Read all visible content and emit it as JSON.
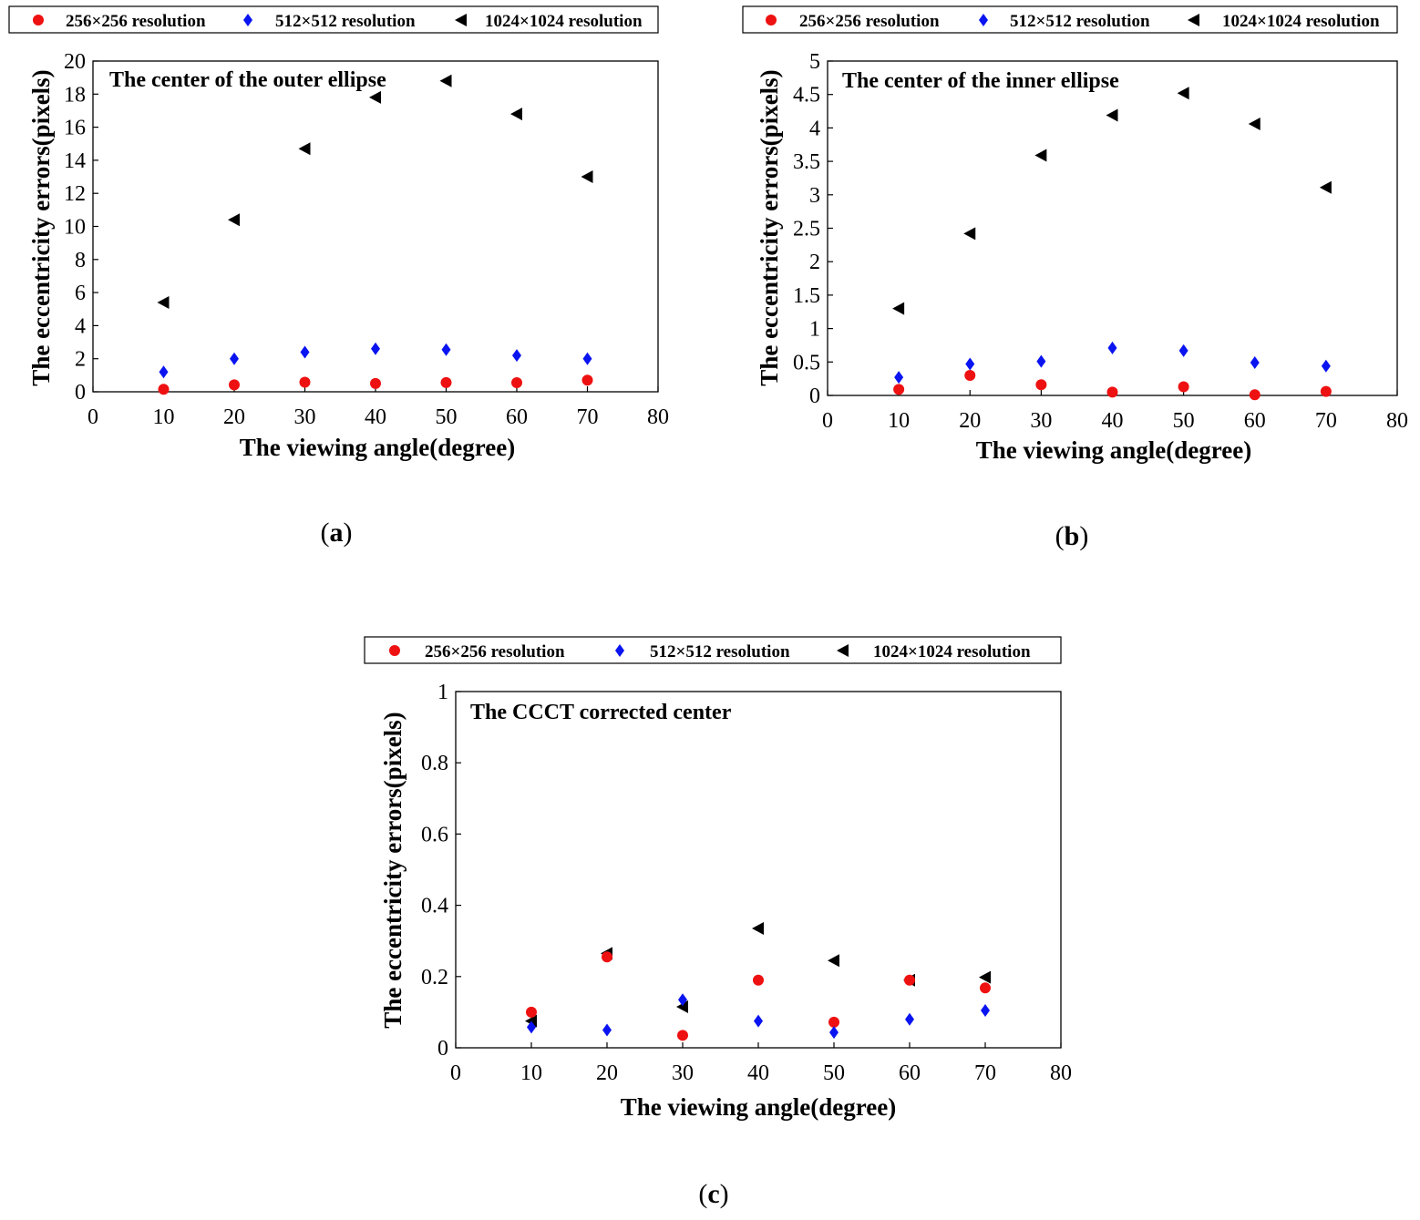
{
  "colors": {
    "s256": "#ee1111",
    "s512": "#0a14f0",
    "s1024": "#000000"
  },
  "chart_data": [
    {
      "type": "scatter",
      "panel_label": "a",
      "title": "The center of the outer ellipse",
      "xlabel": "The viewing angle(degree)",
      "ylabel": "The eccentricity errors(pixels)",
      "xlim": [
        0,
        80
      ],
      "ylim": [
        0,
        20
      ],
      "xticks": [
        0,
        10,
        20,
        30,
        40,
        50,
        60,
        70,
        80
      ],
      "yticks": [
        0,
        2,
        4,
        6,
        8,
        10,
        12,
        14,
        16,
        18,
        20
      ],
      "x": [
        10,
        20,
        30,
        40,
        50,
        60,
        70
      ],
      "series": [
        {
          "name": "256×256 resolution",
          "marker": "circle",
          "values": [
            0.15,
            0.42,
            0.58,
            0.5,
            0.56,
            0.55,
            0.7
          ]
        },
        {
          "name": "512×512 resolution",
          "marker": "diamond",
          "values": [
            1.2,
            2.0,
            2.4,
            2.6,
            2.55,
            2.2,
            2.0
          ]
        },
        {
          "name": "1024×1024 resolution",
          "marker": "triangle-left",
          "values": [
            5.4,
            10.4,
            14.7,
            17.8,
            18.8,
            16.8,
            13.0
          ]
        }
      ]
    },
    {
      "type": "scatter",
      "panel_label": "b",
      "title": "The center of the inner ellipse",
      "xlabel": "The viewing angle(degree)",
      "ylabel": "The eccentricity errors(pixels)",
      "xlim": [
        0,
        80
      ],
      "ylim": [
        0,
        5
      ],
      "xticks": [
        0,
        10,
        20,
        30,
        40,
        50,
        60,
        70,
        80
      ],
      "yticks": [
        0,
        0.5,
        1,
        1.5,
        2,
        2.5,
        3,
        3.5,
        4,
        4.5,
        5
      ],
      "x": [
        10,
        20,
        30,
        40,
        50,
        60,
        70
      ],
      "series": [
        {
          "name": "256×256 resolution",
          "marker": "circle",
          "values": [
            0.09,
            0.3,
            0.16,
            0.05,
            0.13,
            0.01,
            0.06
          ]
        },
        {
          "name": "512×512 resolution",
          "marker": "diamond",
          "values": [
            0.27,
            0.47,
            0.51,
            0.71,
            0.67,
            0.49,
            0.44
          ]
        },
        {
          "name": "1024×1024 resolution",
          "marker": "triangle-left",
          "values": [
            1.3,
            2.42,
            3.59,
            4.19,
            4.52,
            4.06,
            3.11
          ]
        }
      ]
    },
    {
      "type": "scatter",
      "panel_label": "c",
      "title": "The CCCT corrected center",
      "xlabel": "The viewing angle(degree)",
      "ylabel": "The eccentricity errors(pixels)",
      "xlim": [
        0,
        80
      ],
      "ylim": [
        0,
        1
      ],
      "xticks": [
        0,
        10,
        20,
        30,
        40,
        50,
        60,
        70,
        80
      ],
      "yticks": [
        0,
        0.2,
        0.4,
        0.6,
        0.8,
        1
      ],
      "x": [
        10,
        20,
        30,
        40,
        50,
        60,
        70
      ],
      "series": [
        {
          "name": "256×256 resolution",
          "marker": "circle",
          "values": [
            0.1,
            0.255,
            0.035,
            0.19,
            0.072,
            0.19,
            0.168
          ]
        },
        {
          "name": "512×512 resolution",
          "marker": "diamond",
          "values": [
            0.058,
            0.05,
            0.135,
            0.075,
            0.043,
            0.08,
            0.105
          ]
        },
        {
          "name": "1024×1024 resolution",
          "marker": "triangle-left",
          "values": [
            0.075,
            0.265,
            0.115,
            0.335,
            0.245,
            0.19,
            0.198
          ]
        }
      ]
    }
  ]
}
